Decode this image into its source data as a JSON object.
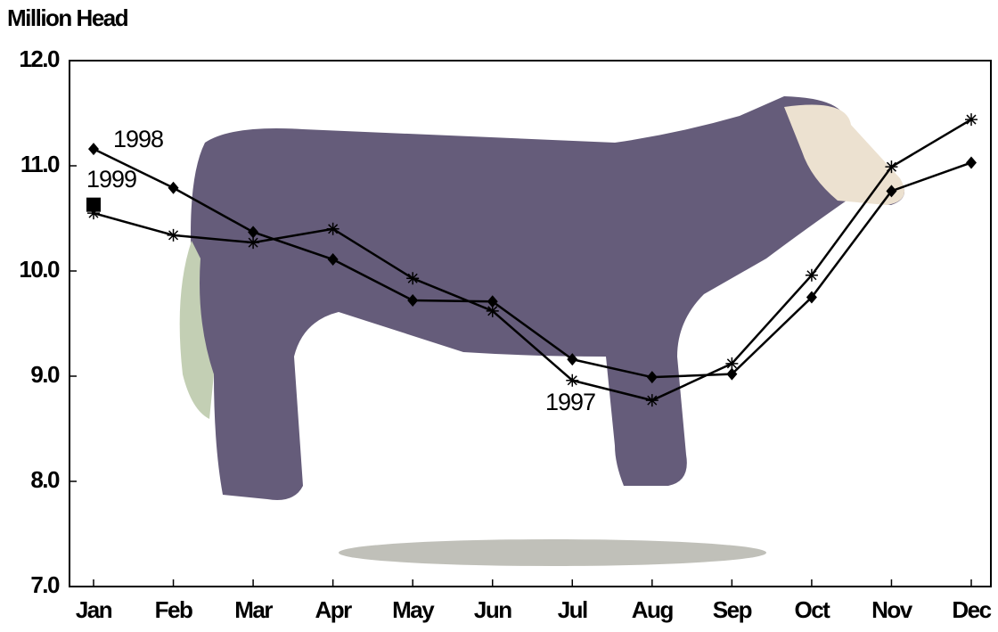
{
  "chart_data": {
    "type": "line",
    "y_label": "Million Head",
    "categories": [
      "Jan",
      "Feb",
      "Mar",
      "Apr",
      "May",
      "Jun",
      "Jul",
      "Aug",
      "Sep",
      "Oct",
      "Nov",
      "Dec"
    ],
    "series": [
      {
        "name": "1997",
        "color": "#000000",
        "marker": "star",
        "values": [
          10.55,
          10.34,
          10.27,
          10.4,
          9.93,
          9.62,
          8.96,
          8.77,
          9.12,
          9.96,
          10.99,
          11.44
        ]
      },
      {
        "name": "1998",
        "color": "#000000",
        "marker": "diamond",
        "values": [
          11.16,
          10.79,
          10.37,
          10.11,
          9.72,
          9.71,
          9.16,
          8.99,
          9.02,
          9.75,
          10.76,
          11.03
        ]
      },
      {
        "name": "1999",
        "color": "#000000",
        "marker": "square",
        "values": [
          10.63,
          null,
          null,
          null,
          null,
          null,
          null,
          null,
          null,
          null,
          null,
          null
        ]
      }
    ],
    "ylim": [
      7.0,
      12.0
    ],
    "yticks": [
      {
        "value": 7,
        "label": "7.0"
      },
      {
        "value": 8,
        "label": "8.0"
      },
      {
        "value": 9,
        "label": "9.0"
      },
      {
        "value": 10,
        "label": "10.0"
      },
      {
        "value": 11,
        "label": "11.0"
      },
      {
        "value": 12,
        "label": "12.0"
      }
    ],
    "grid": false
  }
}
